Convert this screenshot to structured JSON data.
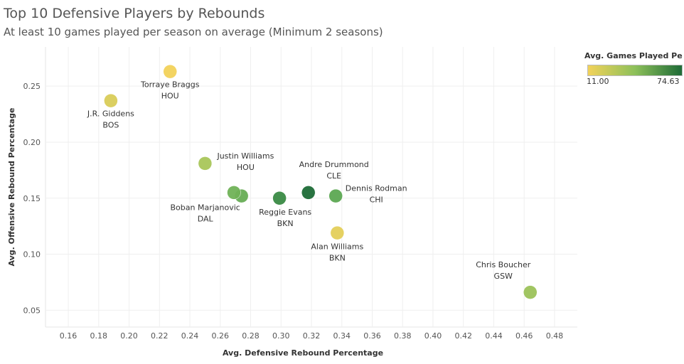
{
  "title": "Top 10 Defensive Players by Rebounds",
  "subtitle": "At least 10 games played per season on average (Minimum 2 seasons)",
  "legend": {
    "title": "Avg. Games Played Per ..",
    "min_label": "11.00",
    "max_label": "74.63",
    "min_color": "#f2d25a",
    "mid_color": "#8dc05a",
    "max_color": "#1e6b37"
  },
  "chart_data": {
    "type": "scatter",
    "xlabel": "Avg. Defensive Rebound Percentage",
    "ylabel": "Avg. Offensive Rebound Percentage",
    "xlim": [
      0.145,
      0.495
    ],
    "ylim": [
      0.035,
      0.285
    ],
    "xticks": [
      "0.16",
      "0.18",
      "0.20",
      "0.22",
      "0.24",
      "0.26",
      "0.28",
      "0.30",
      "0.32",
      "0.34",
      "0.36",
      "0.38",
      "0.40",
      "0.42",
      "0.44",
      "0.46",
      "0.48"
    ],
    "yticks": [
      "0.05",
      "0.10",
      "0.15",
      "0.20",
      "0.25"
    ],
    "points": [
      {
        "name": "Torraye Braggs",
        "team": "HOU",
        "x": 0.227,
        "y": 0.263,
        "color": "#f2d25a",
        "labelled": true
      },
      {
        "name": "J.R. Giddens",
        "team": "BOS",
        "x": 0.188,
        "y": 0.237,
        "color": "#d9cc58",
        "labelled": true
      },
      {
        "name": "Justin Williams",
        "team": "HOU",
        "x": 0.25,
        "y": 0.181,
        "color": "#a9c65a",
        "labelled": true
      },
      {
        "name": "Boban Marjanovic",
        "team": "DAL",
        "x": 0.274,
        "y": 0.152,
        "color": "#67ad55",
        "labelled": true
      },
      {
        "name": "",
        "team": "",
        "x": 0.269,
        "y": 0.155,
        "color": "#70b257",
        "labelled": false
      },
      {
        "name": "Reggie Evans",
        "team": "BKN",
        "x": 0.299,
        "y": 0.15,
        "color": "#3a8a45",
        "labelled": true
      },
      {
        "name": "Andre Drummond",
        "team": "CLE",
        "x": 0.318,
        "y": 0.155,
        "color": "#1e6b37",
        "labelled": true
      },
      {
        "name": "Dennis Rodman",
        "team": "CHI",
        "x": 0.336,
        "y": 0.152,
        "color": "#5ca852",
        "labelled": true
      },
      {
        "name": "Alan Williams",
        "team": "BKN",
        "x": 0.337,
        "y": 0.119,
        "color": "#e4cf5a",
        "labelled": true
      },
      {
        "name": "Chris Boucher",
        "team": "GSW",
        "x": 0.464,
        "y": 0.066,
        "color": "#9cc25a",
        "labelled": true
      }
    ]
  }
}
